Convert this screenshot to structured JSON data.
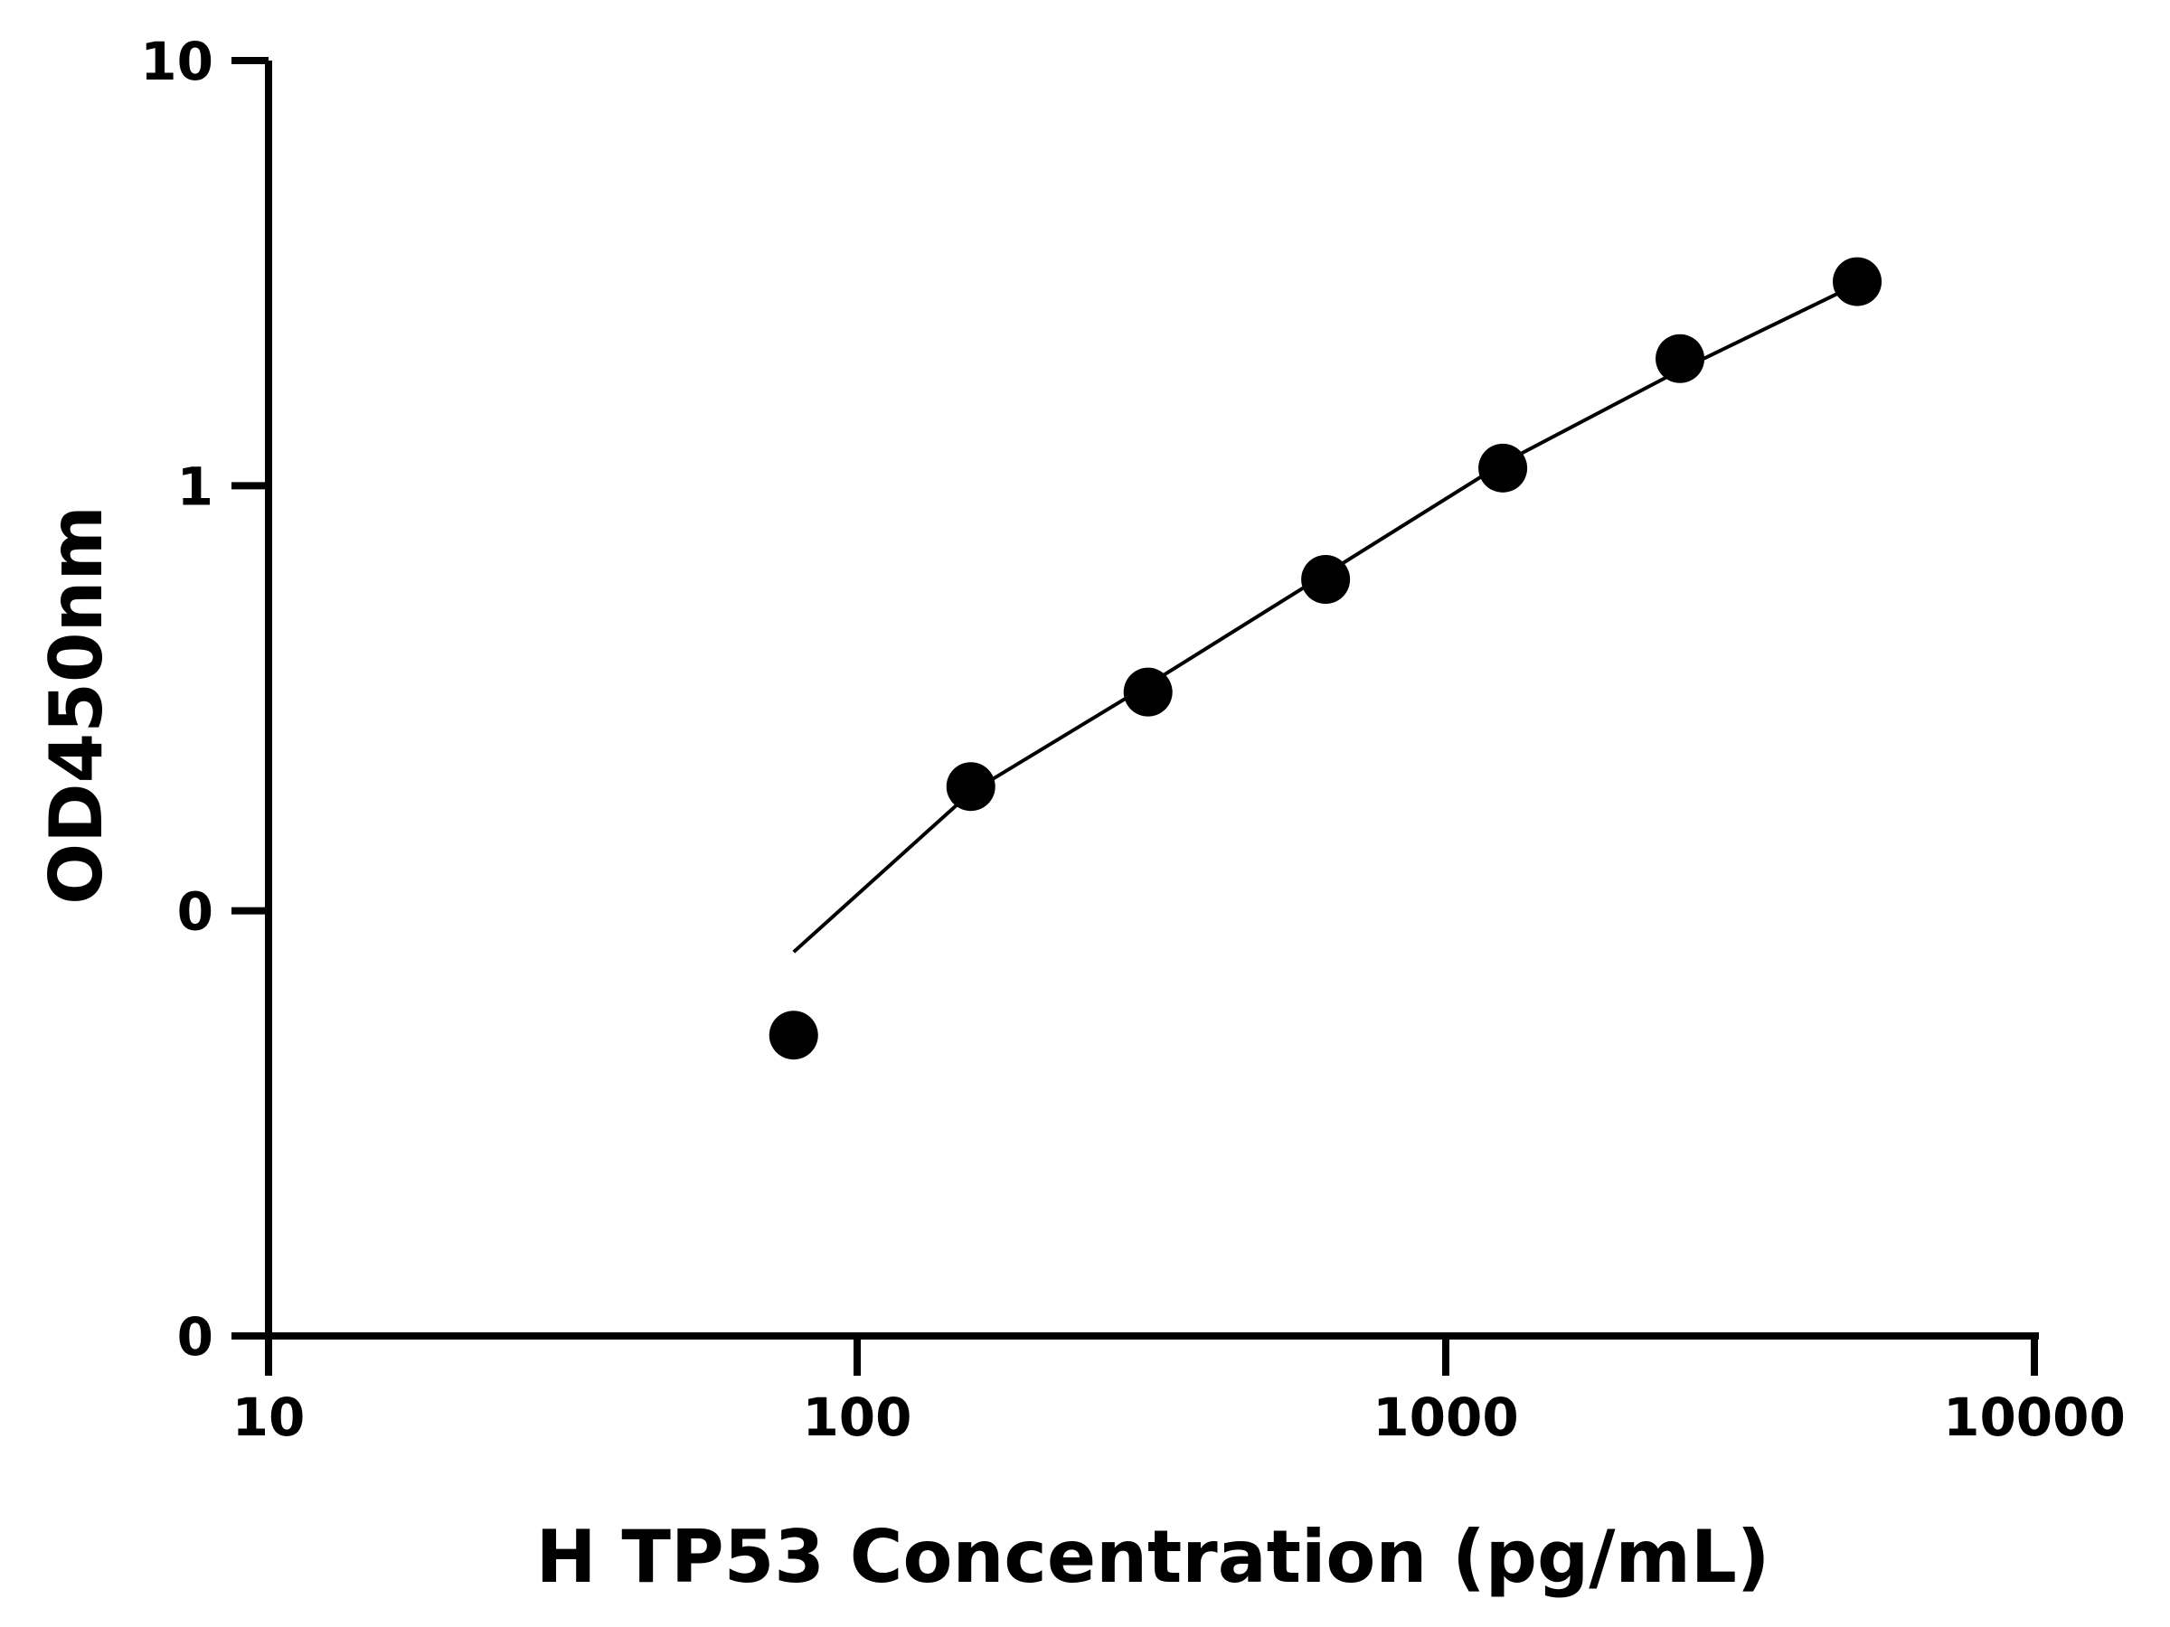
{
  "chart_data": {
    "type": "scatter",
    "xlabel": "H TP53 Concentration (pg/mL)",
    "ylabel": "OD450nm",
    "x_scale": "log",
    "x_ticks": [
      10,
      100,
      1000,
      10000
    ],
    "x_tick_labels": [
      "10",
      "100",
      "1000",
      "10000"
    ],
    "xlim": [
      10,
      10000
    ],
    "y_tick_labels": [
      "10",
      "1",
      "0",
      "0"
    ],
    "y_ticks": [
      10,
      1,
      0.1,
      0.01
    ],
    "y_scale": "log",
    "ylim": [
      0.01,
      10
    ],
    "grid": false,
    "legend": "none",
    "series": [
      {
        "marker": "circle",
        "color": "#000000",
        "x": [
          78,
          156,
          312,
          625,
          1250,
          2500,
          5000
        ],
        "y": [
          0.051,
          0.196,
          0.327,
          0.602,
          1.1,
          1.99,
          3.02
        ]
      },
      {
        "type": "line",
        "color": "#000000",
        "x": [
          78,
          156,
          312,
          625,
          1250,
          2500,
          5000
        ],
        "y": [
          0.08,
          0.19,
          0.34,
          0.62,
          1.13,
          1.87,
          2.98
        ]
      }
    ]
  }
}
